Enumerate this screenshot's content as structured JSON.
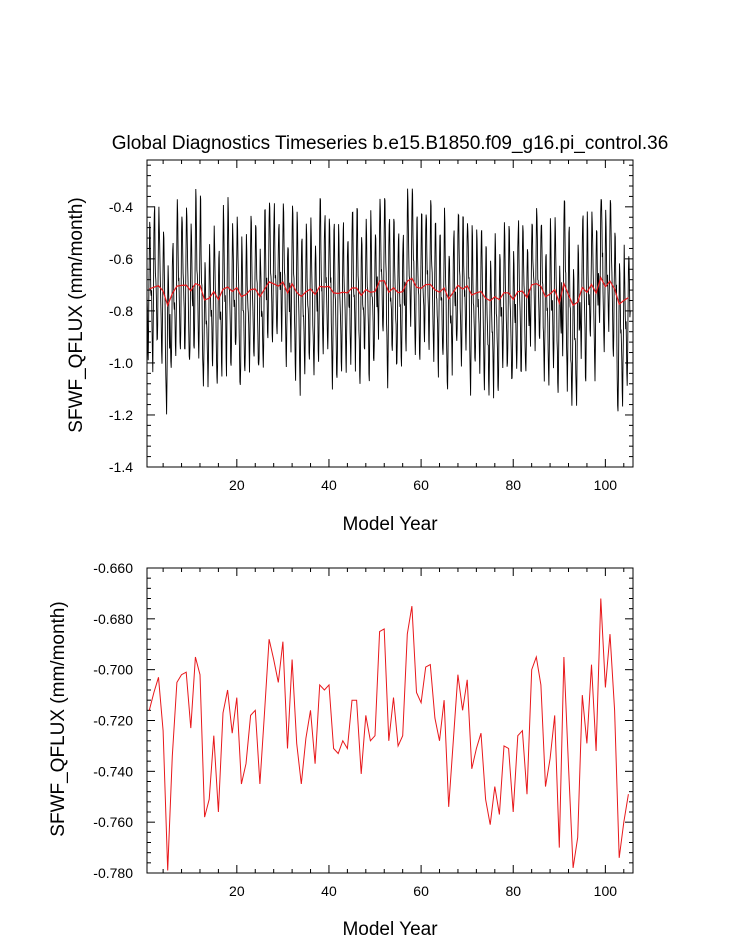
{
  "title": "Global Diagnostics Timeseries b.e15.B1850.f09_g16.pi_control.36",
  "colors": {
    "monthly": "#000000",
    "annual": "#e8181b",
    "axis": "#000000",
    "background": "#ffffff"
  },
  "chart_data": [
    {
      "type": "line",
      "xlabel": "Model Year",
      "ylabel": "SFWF_QFLUX (mm/month)",
      "xlim": [
        0.5,
        106
      ],
      "ylim": [
        -1.4,
        -0.22
      ],
      "x_ticks": [
        20,
        40,
        60,
        80,
        100
      ],
      "x_tick_labels": [
        "20",
        "40",
        "60",
        "80",
        "100"
      ],
      "y_ticks": [
        -1.4,
        -1.2,
        -1.0,
        -0.8,
        -0.6,
        -0.4
      ],
      "y_tick_labels": [
        "-1.4",
        "-1.2",
        "-1.0",
        "-0.8",
        "-0.6",
        "-0.4"
      ],
      "grid": false,
      "legend": "none",
      "series": [
        {
          "color": "#000000",
          "x_start": 0.5,
          "x_step": 0.08333,
          "monthly_climatology": [
            -0.78,
            -0.85,
            -0.95,
            -1.0,
            -0.9,
            -0.74,
            -0.58,
            -0.47,
            -0.49,
            -0.62,
            -0.72,
            -0.74
          ],
          "annual_offsets_from": "series 1 (annual means) minus -0.720",
          "max": -0.33,
          "min": -1.3
        },
        {
          "color": "#e8181b",
          "x_from": "chart_data.1.x",
          "values_from": "chart_data.1.series.0.values"
        }
      ]
    },
    {
      "type": "line",
      "xlabel": "Model Year",
      "ylabel": "SFWF_QFLUX (mm/month)",
      "xlim": [
        0.5,
        106
      ],
      "ylim": [
        -0.78,
        -0.66
      ],
      "x_ticks": [
        20,
        40,
        60,
        80,
        100
      ],
      "x_tick_labels": [
        "20",
        "40",
        "60",
        "80",
        "100"
      ],
      "y_ticks": [
        -0.78,
        -0.76,
        -0.74,
        -0.72,
        -0.7,
        -0.68,
        -0.66
      ],
      "y_tick_labels": [
        "-0.780",
        "-0.760",
        "-0.740",
        "-0.720",
        "-0.700",
        "-0.680",
        "-0.660"
      ],
      "grid": false,
      "legend": "none",
      "x": [
        1,
        2,
        3,
        4,
        5,
        6,
        7,
        8,
        9,
        10,
        11,
        12,
        13,
        14,
        15,
        16,
        17,
        18,
        19,
        20,
        21,
        22,
        23,
        24,
        25,
        26,
        27,
        28,
        29,
        30,
        31,
        32,
        33,
        34,
        35,
        36,
        37,
        38,
        39,
        40,
        41,
        42,
        43,
        44,
        45,
        46,
        47,
        48,
        49,
        50,
        51,
        52,
        53,
        54,
        55,
        56,
        57,
        58,
        59,
        60,
        61,
        62,
        63,
        64,
        65,
        66,
        67,
        68,
        69,
        70,
        71,
        72,
        73,
        74,
        75,
        76,
        77,
        78,
        79,
        80,
        81,
        82,
        83,
        84,
        85,
        86,
        87,
        88,
        89,
        90,
        91,
        92,
        93,
        94,
        95,
        96,
        97,
        98,
        99,
        100,
        101,
        102,
        103,
        104,
        105
      ],
      "series": [
        {
          "color": "#e8181b",
          "values": [
            -0.716,
            -0.709,
            -0.703,
            -0.724,
            -0.779,
            -0.734,
            -0.705,
            -0.702,
            -0.701,
            -0.723,
            -0.695,
            -0.702,
            -0.758,
            -0.751,
            -0.726,
            -0.756,
            -0.717,
            -0.708,
            -0.725,
            -0.711,
            -0.745,
            -0.737,
            -0.718,
            -0.716,
            -0.745,
            -0.717,
            -0.688,
            -0.696,
            -0.705,
            -0.689,
            -0.731,
            -0.696,
            -0.729,
            -0.745,
            -0.727,
            -0.716,
            -0.737,
            -0.706,
            -0.708,
            -0.706,
            -0.731,
            -0.733,
            -0.728,
            -0.731,
            -0.712,
            -0.712,
            -0.741,
            -0.718,
            -0.728,
            -0.726,
            -0.685,
            -0.684,
            -0.728,
            -0.711,
            -0.73,
            -0.726,
            -0.686,
            -0.675,
            -0.709,
            -0.713,
            -0.699,
            -0.698,
            -0.719,
            -0.728,
            -0.712,
            -0.754,
            -0.728,
            -0.702,
            -0.716,
            -0.704,
            -0.739,
            -0.731,
            -0.725,
            -0.751,
            -0.761,
            -0.746,
            -0.757,
            -0.73,
            -0.731,
            -0.756,
            -0.726,
            -0.724,
            -0.749,
            -0.7,
            -0.695,
            -0.706,
            -0.746,
            -0.735,
            -0.718,
            -0.77,
            -0.695,
            -0.738,
            -0.778,
            -0.766,
            -0.71,
            -0.729,
            -0.698,
            -0.732,
            -0.672,
            -0.707,
            -0.686,
            -0.716,
            -0.774,
            -0.76,
            -0.749
          ]
        }
      ]
    }
  ]
}
